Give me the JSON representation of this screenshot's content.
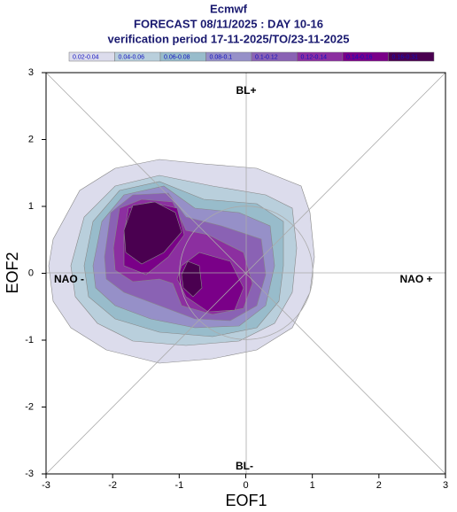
{
  "chart_data": {
    "type": "contour",
    "title": "Ecmwf",
    "subtitle": "FORECAST 08/11/2025 : DAY 10-16",
    "caption": "verification period 17-11-2025/TO/23-11-2025",
    "xlabel": "EOF1",
    "ylabel": "EOF2",
    "xlim": [
      -3,
      3
    ],
    "ylim": [
      -3,
      3
    ],
    "xticks": [
      -3,
      -2,
      -1,
      0,
      1,
      2,
      3
    ],
    "yticks": [
      -3,
      -2,
      -1,
      0,
      1,
      2,
      3
    ],
    "annotations": [
      "BL+",
      "BL-",
      "NAO -",
      "NAO +"
    ],
    "levels": [
      {
        "name": "0.02-0.04",
        "min": 0.02,
        "max": 0.04,
        "color": "#dcdcec"
      },
      {
        "name": "0.04-0.06",
        "min": 0.04,
        "max": 0.06,
        "color": "#b9cfdc"
      },
      {
        "name": "0.06-0.08",
        "min": 0.06,
        "max": 0.08,
        "color": "#98bccb"
      },
      {
        "name": "0.08-0.1",
        "min": 0.08,
        "max": 0.1,
        "color": "#9690c8"
      },
      {
        "name": "0.1-0.12",
        "min": 0.1,
        "max": 0.12,
        "color": "#8a62b4"
      },
      {
        "name": "0.12-0.14",
        "min": 0.12,
        "max": 0.14,
        "color": "#8c2fa0"
      },
      {
        "name": "0.14-0.16",
        "min": 0.14,
        "max": 0.16,
        "color": "#7a0088"
      },
      {
        "name": "0.16-0.31",
        "min": 0.16,
        "max": 0.31,
        "color": "#4a0050"
      }
    ]
  }
}
